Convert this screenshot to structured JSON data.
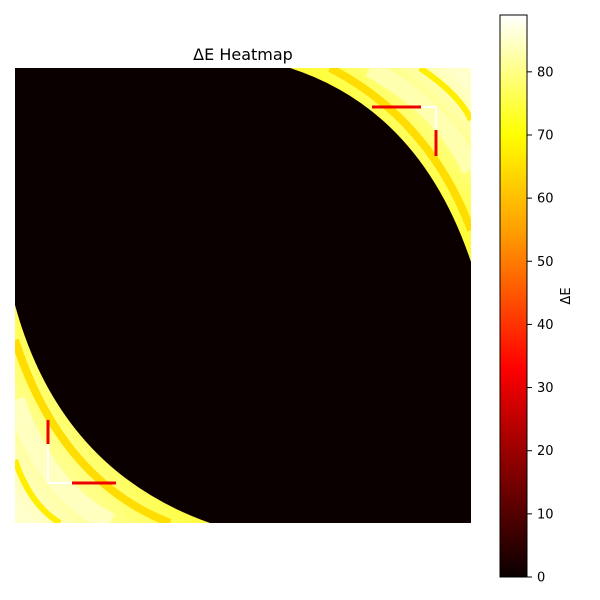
{
  "chart_data": {
    "type": "heatmap",
    "title": "ΔE Heatmap",
    "xlabel": "",
    "ylabel": "",
    "axes_visible": false,
    "colormap": "hot",
    "colorbar": {
      "label": "ΔE",
      "range": [
        0,
        89
      ],
      "ticks": [
        0,
        10,
        20,
        30,
        40,
        50,
        60,
        70,
        80
      ],
      "tick_labels": [
        "0",
        "10",
        "20",
        "30",
        "40",
        "50",
        "60",
        "70",
        "80"
      ]
    },
    "colormap_stops": [
      {
        "value": 0,
        "color": "#0a0000"
      },
      {
        "value": 25,
        "color": "#c00000"
      },
      {
        "value": 33,
        "color": "#ff0000"
      },
      {
        "value": 55,
        "color": "#ffa000"
      },
      {
        "value": 70,
        "color": "#ffff00"
      },
      {
        "value": 89,
        "color": "#ffffff"
      }
    ],
    "grid": false
  }
}
